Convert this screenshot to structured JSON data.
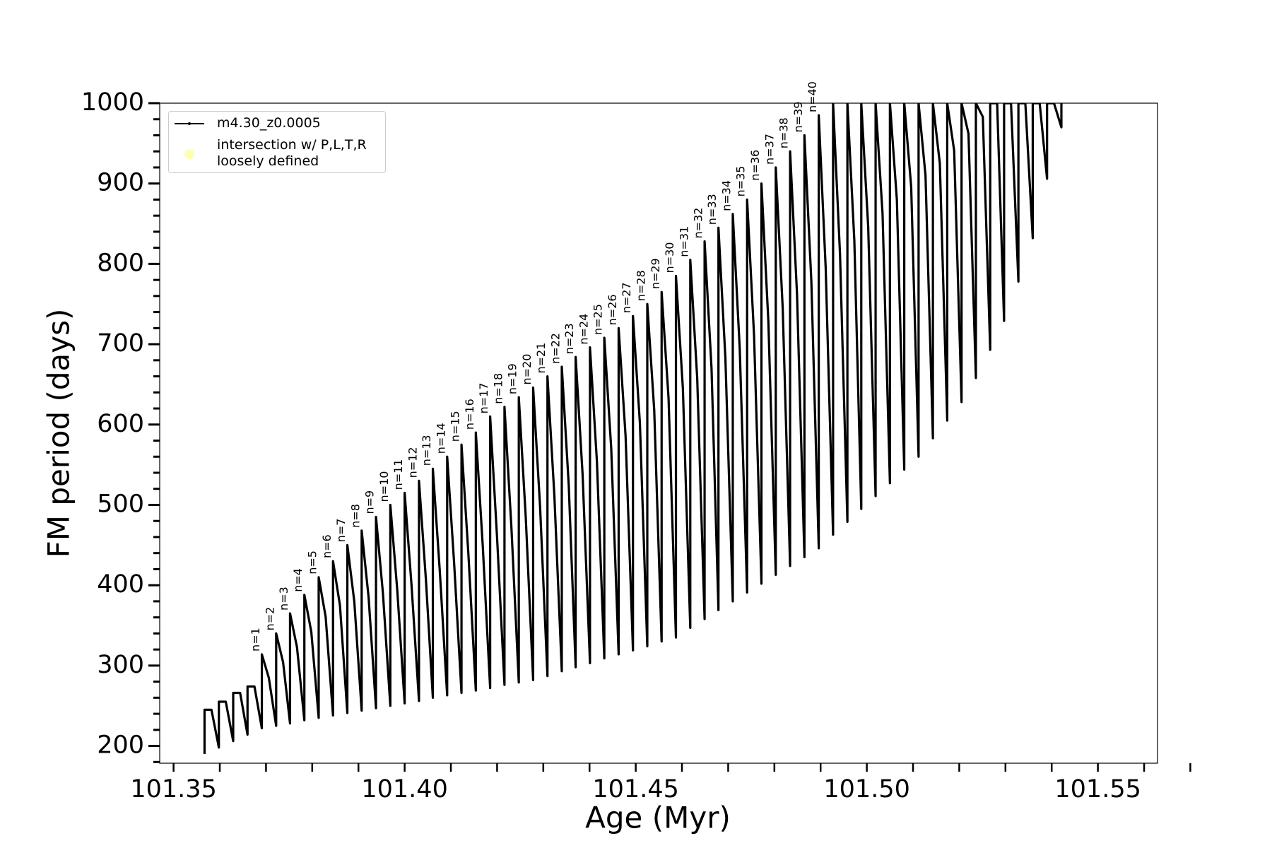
{
  "chart_data": {
    "type": "line",
    "xlabel": "Age (Myr)",
    "ylabel": "FM period (days)",
    "xlim": [
      101.347,
      101.5629
    ],
    "ylim": [
      178.5,
      1000
    ],
    "xticks": [
      101.35,
      {
        "value": 101.4,
        "label": "101.40"
      },
      101.45,
      {
        "value": 101.5,
        "label": "101.50"
      },
      101.55
    ],
    "xminor": [
      101.36,
      101.37,
      101.38,
      101.39,
      101.41,
      101.42,
      101.43,
      101.44,
      101.46,
      101.47,
      101.48,
      101.49,
      101.51,
      101.52,
      101.53,
      101.54,
      101.56,
      101.57
    ],
    "yticks": [
      200,
      300,
      400,
      500,
      600,
      700,
      800,
      900,
      1000
    ],
    "yminor": [
      180,
      220,
      240,
      260,
      280,
      320,
      340,
      360,
      380,
      420,
      440,
      460,
      480,
      520,
      540,
      560,
      580,
      620,
      640,
      660,
      680,
      720,
      740,
      760,
      780,
      820,
      840,
      860,
      880,
      920,
      940,
      960,
      980
    ],
    "legend": "upper left",
    "series": [
      {
        "name": "m4.30_z0.0005",
        "color": "#000000",
        "x": [
          101.3567,
          101.3567,
          101.3582,
          101.3598,
          101.3598,
          101.3613,
          101.3629,
          101.3629,
          101.3644,
          101.366,
          101.366,
          101.3675,
          101.3691,
          101.3691,
          101.3706,
          101.3722,
          101.3722,
          101.3737,
          101.3752,
          101.3752,
          101.3767,
          101.3783,
          101.3783,
          101.3798,
          101.3814,
          101.3814,
          101.3829,
          101.3845,
          101.3845,
          101.386,
          101.3876,
          101.3876,
          101.3891,
          101.3907,
          101.3907,
          101.3922,
          101.3938,
          101.3938,
          101.3953,
          101.3969,
          101.3969,
          101.3984,
          101.4,
          101.4,
          101.4015,
          101.4031,
          101.4031,
          101.4046,
          101.4061,
          101.4061,
          101.4076,
          101.4092,
          101.4092,
          101.4107,
          101.4123,
          101.4123,
          101.4138,
          101.4154,
          101.4154,
          101.4169,
          101.4185,
          101.4185,
          101.42,
          101.4216,
          101.4216,
          101.4231,
          101.4247,
          101.4247,
          101.4262,
          101.4278,
          101.4278,
          101.4293,
          101.4309,
          101.4309,
          101.4324,
          101.434,
          101.434,
          101.4355,
          101.437,
          101.437,
          101.4385,
          101.4401,
          101.4401,
          101.4416,
          101.4432,
          101.4432,
          101.4447,
          101.4463,
          101.4463,
          101.4478,
          101.4494,
          101.4494,
          101.4509,
          101.4525,
          101.4525,
          101.454,
          101.4556,
          101.4556,
          101.4571,
          101.4587,
          101.4587,
          101.4602,
          101.4618,
          101.4618,
          101.4633,
          101.4649,
          101.4649,
          101.4664,
          101.4679,
          101.4679,
          101.4694,
          101.471,
          101.471,
          101.4725,
          101.4741,
          101.4741,
          101.4756,
          101.4772,
          101.4772,
          101.4787,
          101.4803,
          101.4803,
          101.4818,
          101.4834,
          101.4834,
          101.4849,
          101.4865,
          101.4865,
          101.488,
          101.4896,
          101.4896,
          101.4911,
          101.4927,
          101.4927,
          101.4942,
          101.4958,
          101.4958,
          101.4973,
          101.4988,
          101.4988,
          101.5003,
          101.5019,
          101.5019,
          101.5034,
          101.505,
          101.505,
          101.5065,
          101.5081,
          101.5081,
          101.5096,
          101.5112,
          101.5112,
          101.5127,
          101.5143,
          101.5143,
          101.5158,
          101.5174,
          101.5174,
          101.5189,
          101.5205,
          101.5205,
          101.522,
          101.5236,
          101.5236,
          101.5251,
          101.5267,
          101.5267,
          101.5282,
          101.5297,
          101.5297,
          101.5312,
          101.5328,
          101.5328,
          101.5343,
          101.5359,
          101.5359,
          101.5374,
          101.539,
          101.539,
          101.5405,
          101.5421,
          101.5421
        ],
        "y": [
          190,
          245,
          245,
          198,
          255,
          255,
          206,
          266,
          266,
          214,
          274,
          274,
          222,
          314,
          285,
          225,
          340,
          304,
          228,
          365,
          323,
          232,
          388,
          342,
          235,
          410,
          361,
          238,
          430,
          375,
          241,
          450,
          380,
          244,
          468,
          385,
          247,
          485,
          390,
          250,
          500,
          394,
          253,
          515,
          399,
          256,
          530,
          407,
          260,
          545,
          418,
          263,
          560,
          428,
          266,
          575,
          438,
          269,
          590,
          449,
          272,
          610,
          459,
          276,
          622,
          472,
          279,
          634,
          485,
          282,
          646,
          498,
          287,
          660,
          511,
          293,
          672,
          525,
          298,
          684,
          538,
          303,
          696,
          554,
          309,
          708,
          570,
          314,
          720,
          586,
          319,
          735,
          602,
          324,
          750,
          618,
          330,
          765,
          633,
          335,
          785,
          645,
          347,
          805,
          658,
          358,
          828,
          670,
          369,
          845,
          683,
          380,
          862,
          695,
          391,
          880,
          711,
          402,
          900,
          728,
          413,
          920,
          745,
          424,
          940,
          762,
          435,
          960,
          778,
          446,
          985,
          795,
          463,
          1000,
          812,
          479,
          1000,
          829,
          495,
          1000,
          846,
          511,
          1000,
          863,
          527,
          1000,
          880,
          544,
          1000,
          896,
          560,
          1000,
          910,
          583,
          1000,
          925,
          605,
          1000,
          941,
          628,
          1000,
          962,
          658,
          1000,
          983,
          693,
          1000,
          1000,
          729,
          1000,
          1000,
          778,
          1000,
          1000,
          832,
          1000,
          1000,
          906,
          1000,
          1000,
          970,
          1000
        ]
      },
      {
        "name": "intersection w/ P,L,T,R\nloosely defined",
        "color": "#ffffb0"
      }
    ],
    "annotations": [
      "n=1",
      "n=2",
      "n=3",
      "n=4",
      "n=5",
      "n=6",
      "n=7",
      "n=8",
      "n=9",
      "n=10",
      "n=11",
      "n=12",
      "n=13",
      "n=14",
      "n=15",
      "n=16",
      "n=17",
      "n=18",
      "n=19",
      "n=20",
      "n=21",
      "n=22",
      "n=23",
      "n=24",
      "n=25",
      "n=26",
      "n=27",
      "n=28",
      "n=29",
      "n=30",
      "n=31",
      "n=32",
      "n=33",
      "n=34",
      "n=35",
      "n=36",
      "n=37",
      "n=38",
      "n=39",
      "n=40"
    ]
  }
}
